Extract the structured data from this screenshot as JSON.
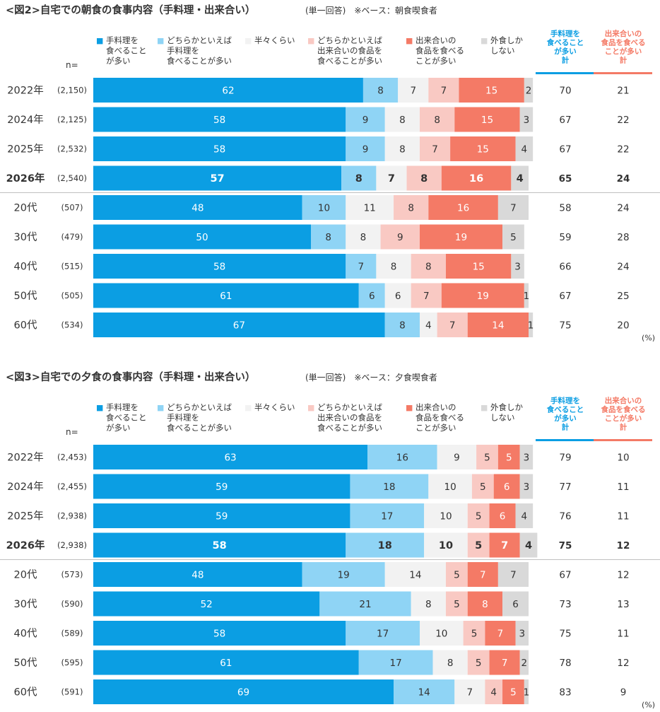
{
  "charts": [
    {
      "title": "<図2>自宅での朝食の食事内容（手料理・出来合い）",
      "note": "(単一回答)　※ベース：朝食喫食者",
      "legend_marks": [
        "■",
        "■",
        "■",
        "■",
        "■",
        "■"
      ],
      "n_label": "n=",
      "total_headers": [
        {
          "label": "手料理を\n食べること\nが多い\n計"
        },
        {
          "label": "出来合いの\n食品を食べる\nことが多い\n計"
        }
      ],
      "unit": "(%)",
      "chart_data": {
        "type": "bar",
        "stacked": true,
        "orientation": "horizontal",
        "categories": [
          "2022年",
          "2024年",
          "2025年",
          "2026年",
          "20代",
          "30代",
          "40代",
          "50代",
          "60代"
        ],
        "n": [
          "(2,150)",
          "(2,125)",
          "(2,532)",
          "(2,540)",
          "(507)",
          "(479)",
          "(515)",
          "(505)",
          "(534)"
        ],
        "highlight_category": "2026年",
        "series": [
          {
            "name": "手料理を\n食べること\nが多い",
            "color": "#0b9ee3",
            "values": [
              62,
              58,
              58,
              57,
              48,
              50,
              58,
              61,
              67
            ]
          },
          {
            "name": "どちらかといえば\n手料理を\n食べることが多い",
            "color": "#8fd4f5",
            "values": [
              8,
              9,
              9,
              8,
              10,
              8,
              7,
              6,
              8
            ]
          },
          {
            "name": "半々くらい",
            "color": "#f2f2f2",
            "values": [
              7,
              8,
              8,
              7,
              11,
              8,
              8,
              6,
              4
            ]
          },
          {
            "name": "どちらかといえば\n出来合いの食品を\n食べることが多い",
            "color": "#f9c9c3",
            "values": [
              7,
              8,
              7,
              8,
              8,
              9,
              8,
              7,
              7
            ]
          },
          {
            "name": "出来合いの\n食品を食べる\nことが多い",
            "color": "#f47a66",
            "values": [
              15,
              15,
              15,
              16,
              16,
              19,
              15,
              19,
              14
            ]
          },
          {
            "name": "外食しか\nしない",
            "color": "#d9d9d9",
            "values": [
              2,
              3,
              4,
              4,
              7,
              5,
              3,
              1,
              1
            ]
          }
        ],
        "totals": [
          {
            "values": [
              70,
              67,
              67,
              65,
              58,
              59,
              66,
              67,
              75
            ]
          },
          {
            "values": [
              21,
              22,
              22,
              24,
              24,
              28,
              24,
              25,
              20
            ]
          }
        ],
        "xlim": [
          0,
          100
        ]
      }
    },
    {
      "title": "<図3>自宅での夕食の食事内容（手料理・出来合い）",
      "note": "(単一回答)　※ベース：夕食喫食者",
      "legend_marks": [
        "■",
        "■",
        "■",
        "■",
        "■",
        "■"
      ],
      "n_label": "n=",
      "total_headers": [
        {
          "label": "手料理を\n食べること\nが多い\n計"
        },
        {
          "label": "出来合いの\n食品を食べる\nことが多い\n計"
        }
      ],
      "unit": "(%)",
      "chart_data": {
        "type": "bar",
        "stacked": true,
        "orientation": "horizontal",
        "categories": [
          "2022年",
          "2024年",
          "2025年",
          "2026年",
          "20代",
          "30代",
          "40代",
          "50代",
          "60代"
        ],
        "n": [
          "(2,453)",
          "(2,455)",
          "(2,938)",
          "(2,938)",
          "(573)",
          "(590)",
          "(589)",
          "(595)",
          "(591)"
        ],
        "highlight_category": "2026年",
        "series": [
          {
            "name": "手料理を\n食べること\nが多い",
            "color": "#0b9ee3",
            "values": [
              63,
              59,
              59,
              58,
              48,
              52,
              58,
              61,
              69
            ]
          },
          {
            "name": "どちらかといえば\n手料理を\n食べることが多い",
            "color": "#8fd4f5",
            "values": [
              16,
              18,
              17,
              18,
              19,
              21,
              17,
              17,
              14
            ]
          },
          {
            "name": "半々くらい",
            "color": "#f2f2f2",
            "values": [
              9,
              10,
              10,
              10,
              14,
              8,
              10,
              8,
              7
            ]
          },
          {
            "name": "どちらかといえば\n出来合いの食品を\n食べることが多い",
            "color": "#f9c9c3",
            "values": [
              5,
              5,
              5,
              5,
              5,
              5,
              5,
              5,
              4
            ]
          },
          {
            "name": "出来合いの\n食品を食べる\nことが多い",
            "color": "#f47a66",
            "values": [
              5,
              6,
              6,
              7,
              7,
              8,
              7,
              7,
              5
            ]
          },
          {
            "name": "外食しか\nしない",
            "color": "#d9d9d9",
            "values": [
              3,
              3,
              4,
              4,
              7,
              6,
              3,
              2,
              1
            ]
          }
        ],
        "totals": [
          {
            "values": [
              79,
              77,
              76,
              75,
              67,
              73,
              75,
              78,
              83
            ]
          },
          {
            "values": [
              10,
              11,
              11,
              12,
              12,
              13,
              11,
              12,
              9
            ]
          }
        ],
        "xlim": [
          0,
          100
        ]
      }
    }
  ],
  "colors": {
    "total1_header": "#0b9ee3",
    "total2_header": "#f47a66",
    "dark_text": "#333333",
    "white_text": "#ffffff",
    "separator": "#bfbfbf"
  }
}
